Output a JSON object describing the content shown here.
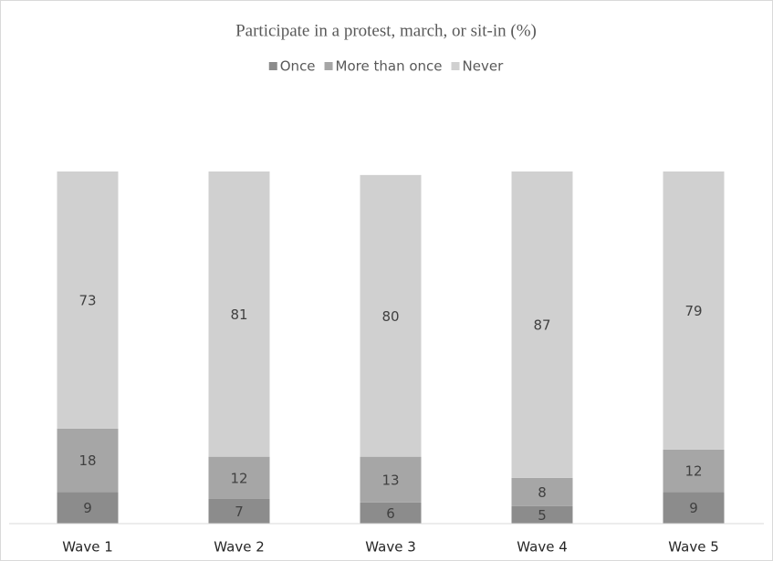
{
  "chart_data": {
    "type": "stacked_bar",
    "title": "Participate in a protest, march, or sit-in (%)",
    "categories": [
      "Wave 1",
      "Wave 2",
      "Wave 3",
      "Wave 4",
      "Wave 5"
    ],
    "series": [
      {
        "name": "Once",
        "color": "#8c8c8c",
        "values": [
          9,
          7,
          6,
          5,
          9
        ]
      },
      {
        "name": "More than once",
        "color": "#a6a6a6",
        "values": [
          18,
          12,
          13,
          8,
          12
        ]
      },
      {
        "name": "Never",
        "color": "#d0d0d0",
        "values": [
          73,
          81,
          80,
          87,
          79
        ]
      }
    ],
    "ylim": [
      0,
      100
    ]
  }
}
